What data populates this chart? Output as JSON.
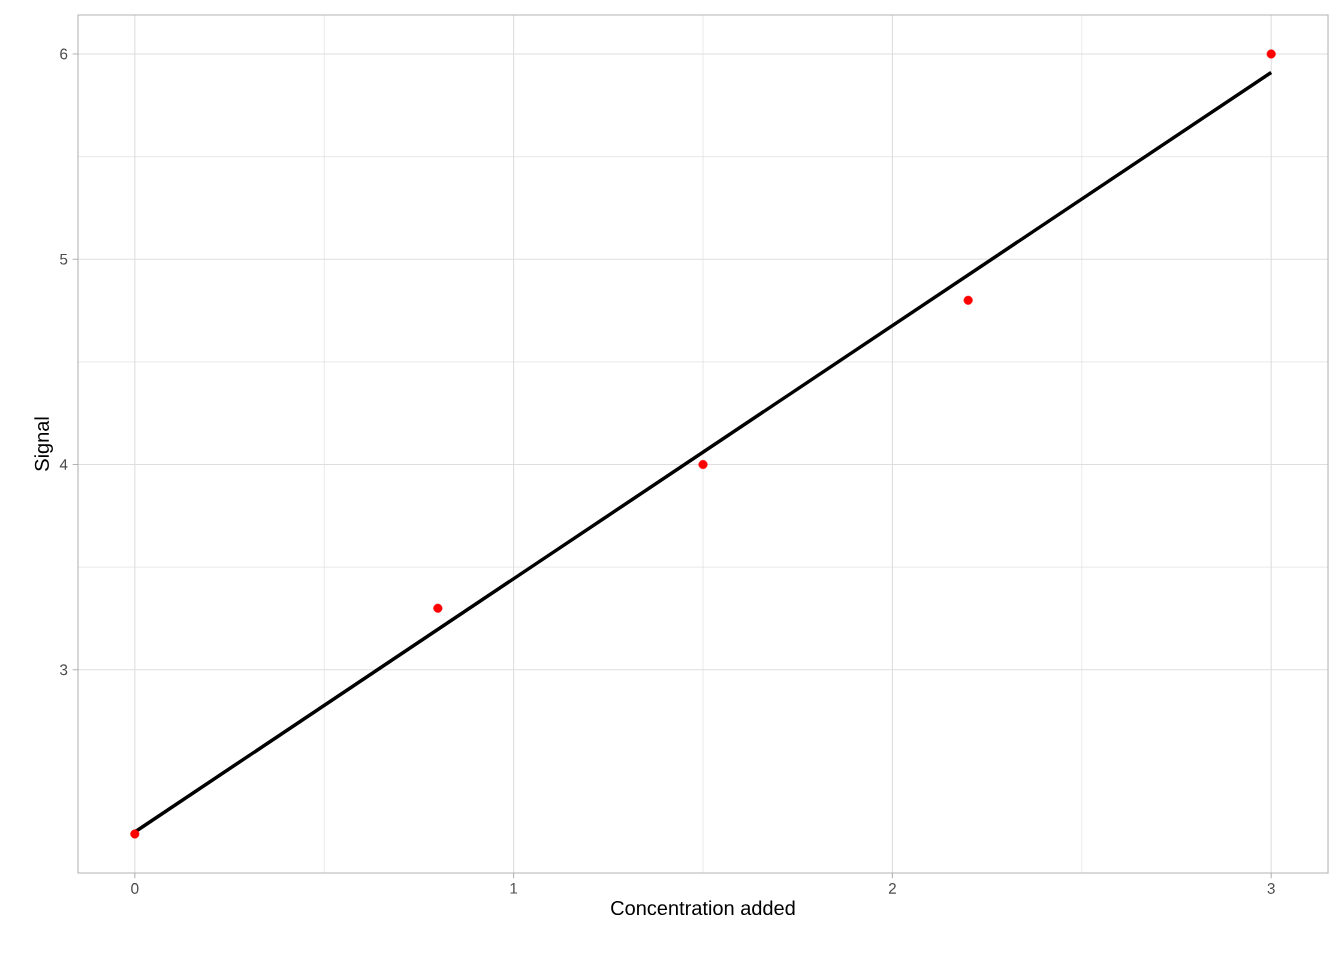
{
  "chart_data": {
    "type": "scatter",
    "xlabel": "Concentration added",
    "ylabel": "Signal",
    "xlim": [
      -0.15,
      3.15
    ],
    "ylim": [
      2.01,
      6.19
    ],
    "xticks": [
      0,
      1,
      2,
      3
    ],
    "yticks": [
      3,
      4,
      5,
      6
    ],
    "grid": true,
    "series": [
      {
        "color": "#ff0000",
        "marker": "circle",
        "x": [
          0,
          0.8,
          1.5,
          2.2,
          3
        ],
        "values": [
          2.2,
          3.3,
          4.0,
          4.8,
          6.0
        ]
      },
      {
        "type": "line",
        "color": "#000000",
        "marker": "none",
        "x": [
          0,
          3
        ],
        "values": [
          2.21,
          5.91
        ]
      }
    ]
  }
}
